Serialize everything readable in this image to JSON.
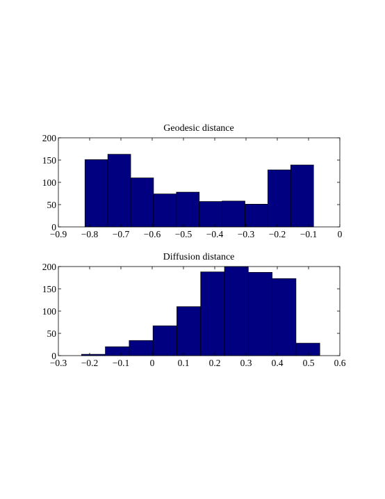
{
  "figure": {
    "background": "#ffffff"
  },
  "chart_data": [
    {
      "type": "bar",
      "title": "Geodesic distance",
      "xlabel": "",
      "ylabel": "",
      "xlim": [
        -0.9,
        0
      ],
      "ylim": [
        0,
        200
      ],
      "xticks": [
        -0.9,
        -0.8,
        -0.7,
        -0.6,
        -0.5,
        -0.4,
        -0.3,
        -0.2,
        -0.1,
        0
      ],
      "xtick_labels": [
        "−0.9",
        "−0.8",
        "−0.7",
        "−0.6",
        "−0.5",
        "−0.4",
        "−0.3",
        "−0.2",
        "−0.1",
        "0"
      ],
      "yticks": [
        0,
        50,
        100,
        150,
        200
      ],
      "ytick_labels": [
        "0",
        "50",
        "100",
        "150",
        "200"
      ],
      "bin_edges": [
        -0.815,
        -0.7419,
        -0.6688,
        -0.5957,
        -0.5226,
        -0.4495,
        -0.3764,
        -0.3033,
        -0.2302,
        -0.1571,
        -0.084
      ],
      "values": [
        151,
        163,
        110,
        74,
        78,
        57,
        58,
        51,
        128,
        139
      ],
      "bar_color": "#000080",
      "edge_color": "#000000",
      "grid": false
    },
    {
      "type": "bar",
      "title": "Diffusion distance",
      "xlabel": "",
      "ylabel": "",
      "xlim": [
        -0.3,
        0.6
      ],
      "ylim": [
        0,
        200
      ],
      "xticks": [
        -0.3,
        -0.2,
        -0.1,
        0,
        0.1,
        0.2,
        0.3,
        0.4,
        0.5,
        0.6
      ],
      "xtick_labels": [
        "−0.3",
        "−0.2",
        "−0.1",
        "0",
        "0.1",
        "0.2",
        "0.3",
        "0.4",
        "0.5",
        "0.6"
      ],
      "yticks": [
        0,
        50,
        100,
        150,
        200
      ],
      "ytick_labels": [
        "0",
        "50",
        "100",
        "150",
        "200"
      ],
      "bin_edges": [
        -0.226,
        -0.1498,
        -0.0736,
        0.0026,
        0.0788,
        0.155,
        0.2312,
        0.3074,
        0.3836,
        0.4598,
        0.536
      ],
      "values": [
        3,
        20,
        34,
        67,
        110,
        188,
        200,
        187,
        173,
        28
      ],
      "bar_color": "#000080",
      "edge_color": "#000000",
      "grid": false
    }
  ]
}
